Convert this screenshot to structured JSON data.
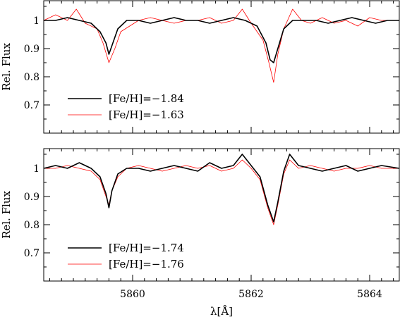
{
  "chart_data": [
    {
      "type": "line",
      "title": "",
      "xlabel": "",
      "ylabel": "Rel. Flux",
      "xlim": [
        5858.5,
        5864.5
      ],
      "ylim": [
        0.6,
        1.07
      ],
      "yticks": [
        0.7,
        0.8,
        0.9,
        1
      ],
      "ytick_labels": [
        "0.7",
        "0.8",
        "0.9",
        "1"
      ],
      "xticks": [
        5860,
        5862,
        5864
      ],
      "xtick_labels": [],
      "legend_position": "lower-left",
      "series": [
        {
          "name": "[Fe/H]=−1.84",
          "color": "#000000",
          "x": [
            5858.5,
            5858.7,
            5858.9,
            5859.1,
            5859.3,
            5859.45,
            5859.55,
            5859.6,
            5859.65,
            5859.75,
            5859.9,
            5860.1,
            5860.3,
            5860.5,
            5860.7,
            5860.9,
            5861.1,
            5861.3,
            5861.5,
            5861.7,
            5861.9,
            5862.1,
            5862.25,
            5862.32,
            5862.38,
            5862.45,
            5862.55,
            5862.7,
            5862.9,
            5863.1,
            5863.3,
            5863.5,
            5863.7,
            5863.9,
            5864.1,
            5864.3,
            5864.5
          ],
          "y": [
            1.0,
            1.0,
            1.01,
            1.0,
            0.99,
            0.96,
            0.92,
            0.88,
            0.91,
            0.97,
            1.0,
            1.0,
            0.99,
            1.0,
            1.01,
            1.0,
            1.0,
            0.99,
            1.0,
            1.01,
            1.0,
            0.98,
            0.92,
            0.86,
            0.85,
            0.9,
            0.97,
            1.0,
            1.0,
            1.0,
            0.99,
            1.0,
            1.01,
            1.0,
            0.99,
            1.0,
            1.0
          ]
        },
        {
          "name": "[Fe/H]=−1.63",
          "color": "#ff0000",
          "x": [
            5858.5,
            5858.7,
            5858.9,
            5859.05,
            5859.2,
            5859.4,
            5859.5,
            5859.6,
            5859.7,
            5859.8,
            5859.95,
            5860.1,
            5860.3,
            5860.5,
            5860.7,
            5860.9,
            5861.1,
            5861.3,
            5861.5,
            5861.7,
            5861.85,
            5862.0,
            5862.2,
            5862.3,
            5862.38,
            5862.45,
            5862.55,
            5862.7,
            5862.85,
            5863.0,
            5863.2,
            5863.4,
            5863.6,
            5863.8,
            5864.0,
            5864.2,
            5864.5
          ],
          "y": [
            1.0,
            1.02,
            1.0,
            1.04,
            0.99,
            0.97,
            0.92,
            0.85,
            0.9,
            0.96,
            0.98,
            1.0,
            1.01,
            1.0,
            0.99,
            1.0,
            1.0,
            1.01,
            0.99,
            1.0,
            1.04,
            0.99,
            0.93,
            0.85,
            0.78,
            0.88,
            0.97,
            1.04,
            1.0,
            0.99,
            1.01,
            0.99,
            1.0,
            0.98,
            1.01,
            1.0,
            1.0
          ]
        }
      ]
    },
    {
      "type": "line",
      "title": "",
      "xlabel": "λ[Å]",
      "ylabel": "Rel. Flux",
      "xlim": [
        5858.5,
        5864.5
      ],
      "ylim": [
        0.6,
        1.07
      ],
      "yticks": [
        0.7,
        0.8,
        0.9,
        1
      ],
      "ytick_labels": [
        "0.7",
        "0.8",
        "0.9",
        "1"
      ],
      "xticks": [
        5860,
        5862,
        5864
      ],
      "xtick_labels": [
        "5860",
        "5862",
        "5864"
      ],
      "legend_position": "lower-left",
      "series": [
        {
          "name": "[Fe/H]=−1.74",
          "color": "#000000",
          "x": [
            5858.5,
            5858.7,
            5858.9,
            5859.1,
            5859.3,
            5859.45,
            5859.55,
            5859.6,
            5859.65,
            5859.75,
            5859.9,
            5860.1,
            5860.3,
            5860.5,
            5860.7,
            5860.9,
            5861.1,
            5861.3,
            5861.5,
            5861.7,
            5861.85,
            5862.0,
            5862.15,
            5862.28,
            5862.38,
            5862.45,
            5862.55,
            5862.65,
            5862.8,
            5863.0,
            5863.2,
            5863.4,
            5863.6,
            5863.8,
            5864.0,
            5864.2,
            5864.5
          ],
          "y": [
            1.0,
            1.01,
            1.0,
            1.02,
            1.0,
            0.97,
            0.91,
            0.86,
            0.92,
            0.98,
            1.0,
            1.0,
            0.99,
            1.0,
            1.01,
            1.0,
            0.99,
            1.02,
            1.0,
            1.01,
            1.05,
            1.01,
            0.97,
            0.87,
            0.81,
            0.88,
            0.99,
            1.05,
            1.01,
            1.0,
            0.99,
            1.0,
            1.01,
            0.99,
            1.0,
            1.01,
            1.0
          ]
        },
        {
          "name": "[Fe/H]=−1.76",
          "color": "#ff0000",
          "x": [
            5858.5,
            5858.7,
            5858.9,
            5859.1,
            5859.3,
            5859.45,
            5859.55,
            5859.6,
            5859.65,
            5859.75,
            5859.9,
            5860.1,
            5860.3,
            5860.5,
            5860.7,
            5860.9,
            5861.1,
            5861.3,
            5861.5,
            5861.7,
            5861.85,
            5862.0,
            5862.15,
            5862.28,
            5862.38,
            5862.45,
            5862.55,
            5862.65,
            5862.8,
            5863.0,
            5863.2,
            5863.4,
            5863.6,
            5863.8,
            5864.0,
            5864.2,
            5864.5
          ],
          "y": [
            1.0,
            1.0,
            1.01,
            1.0,
            0.99,
            0.96,
            0.9,
            0.87,
            0.92,
            0.97,
            1.0,
            1.01,
            1.0,
            0.99,
            1.0,
            1.01,
            1.0,
            1.01,
            0.99,
            1.0,
            1.03,
            1.0,
            0.96,
            0.86,
            0.8,
            0.87,
            0.98,
            1.03,
            1.0,
            1.01,
            1.0,
            0.99,
            1.0,
            1.0,
            1.01,
            1.0,
            1.0
          ]
        }
      ]
    }
  ]
}
